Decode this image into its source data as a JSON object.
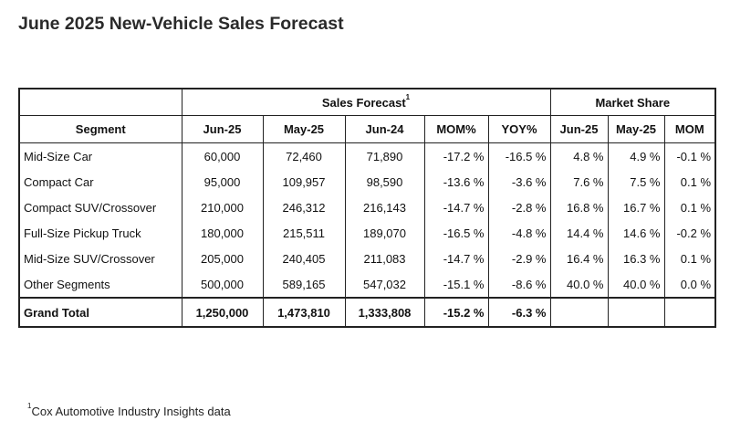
{
  "title": "June 2025 New-Vehicle Sales Forecast",
  "table": {
    "group_sales": "Sales Forecast",
    "group_sales_sup": "1",
    "group_share": "Market Share",
    "headers": [
      "Segment",
      "Jun-25",
      "May-25",
      "Jun-24",
      "MOM%",
      "YOY%",
      "Jun-25",
      "May-25",
      "MOM"
    ],
    "rows": [
      [
        "Mid-Size Car",
        "60,000",
        "72,460",
        "71,890",
        "-17.2 %",
        "-16.5 %",
        "4.8 %",
        "4.9 %",
        "-0.1 %"
      ],
      [
        "Compact Car",
        "95,000",
        "109,957",
        "98,590",
        "-13.6 %",
        "-3.6 %",
        "7.6 %",
        "7.5 %",
        "0.1 %"
      ],
      [
        "Compact SUV/Crossover",
        "210,000",
        "246,312",
        "216,143",
        "-14.7 %",
        "-2.8 %",
        "16.8 %",
        "16.7 %",
        "0.1 %"
      ],
      [
        "Full-Size Pickup Truck",
        "180,000",
        "215,511",
        "189,070",
        "-16.5 %",
        "-4.8 %",
        "14.4 %",
        "14.6 %",
        "-0.2 %"
      ],
      [
        "Mid-Size SUV/Crossover",
        "205,000",
        "240,405",
        "211,083",
        "-14.7 %",
        "-2.9 %",
        "16.4 %",
        "16.3 %",
        "0.1 %"
      ],
      [
        "Other Segments",
        "500,000",
        "589,165",
        "547,032",
        "-15.1 %",
        "-8.6 %",
        "40.0 %",
        "40.0 %",
        "0.0 %"
      ]
    ],
    "total": [
      "Grand Total",
      "1,250,000",
      "1,473,810",
      "1,333,808",
      "-15.2 %",
      "-6.3 %",
      "",
      "",
      ""
    ]
  },
  "footnote": {
    "sup": "1",
    "text": "Cox Automotive Industry Insights data"
  }
}
